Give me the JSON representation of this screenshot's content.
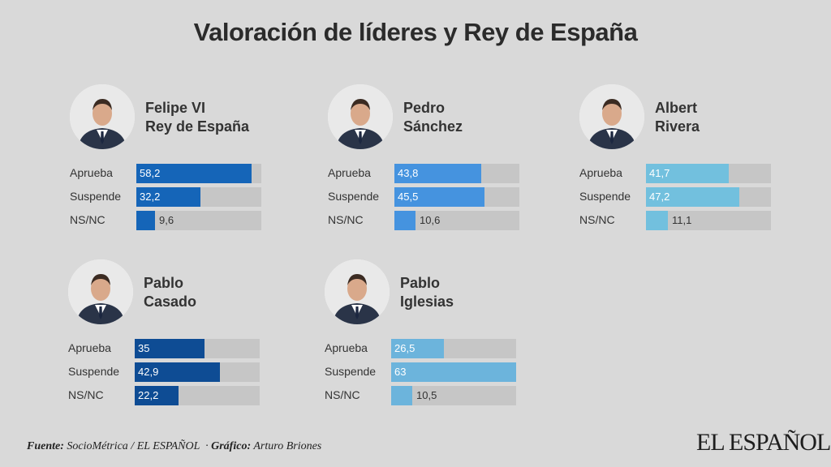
{
  "chart_data": {
    "type": "bar",
    "title": "Valoración de líderes y Rey de España",
    "categories": [
      "Aprueba",
      "Suspende",
      "NS/NC"
    ],
    "xlim": [
      0,
      63
    ],
    "panels": [
      {
        "name_line1": "Felipe VI",
        "name_line2": "Rey de España",
        "color": "#1565b8",
        "values": [
          58.2,
          32.2,
          9.6
        ],
        "labels": [
          "58,2",
          "32,2",
          "9,6"
        ]
      },
      {
        "name_line1": "Pedro",
        "name_line2": "Sánchez",
        "color": "#4593df",
        "values": [
          43.8,
          45.5,
          10.6
        ],
        "labels": [
          "43,8",
          "45,5",
          "10,6"
        ]
      },
      {
        "name_line1": "Albert",
        "name_line2": "Rivera",
        "color": "#72c0de",
        "values": [
          41.7,
          47.2,
          11.1
        ],
        "labels": [
          "41,7",
          "47,2",
          "11,1"
        ]
      },
      {
        "name_line1": "Pablo",
        "name_line2": "Casado",
        "color": "#0e4c94",
        "values": [
          35,
          42.9,
          22.2
        ],
        "labels": [
          "35",
          "42,9",
          "22,2"
        ]
      },
      {
        "name_line1": "Pablo",
        "name_line2": "Iglesias",
        "color": "#6cb4dc",
        "values": [
          26.5,
          63,
          10.5
        ],
        "labels": [
          "26,5",
          "63",
          "10,5"
        ]
      }
    ]
  },
  "footer": {
    "source_label": "Fuente:",
    "source_text": "SocioMétrica / EL ESPAÑOL",
    "separator": "·",
    "credit_label": "Gráfico:",
    "credit_text": "Arturo Briones"
  },
  "logo": "EL ESPAÑOL",
  "icons": [
    "person-photo-icon"
  ]
}
